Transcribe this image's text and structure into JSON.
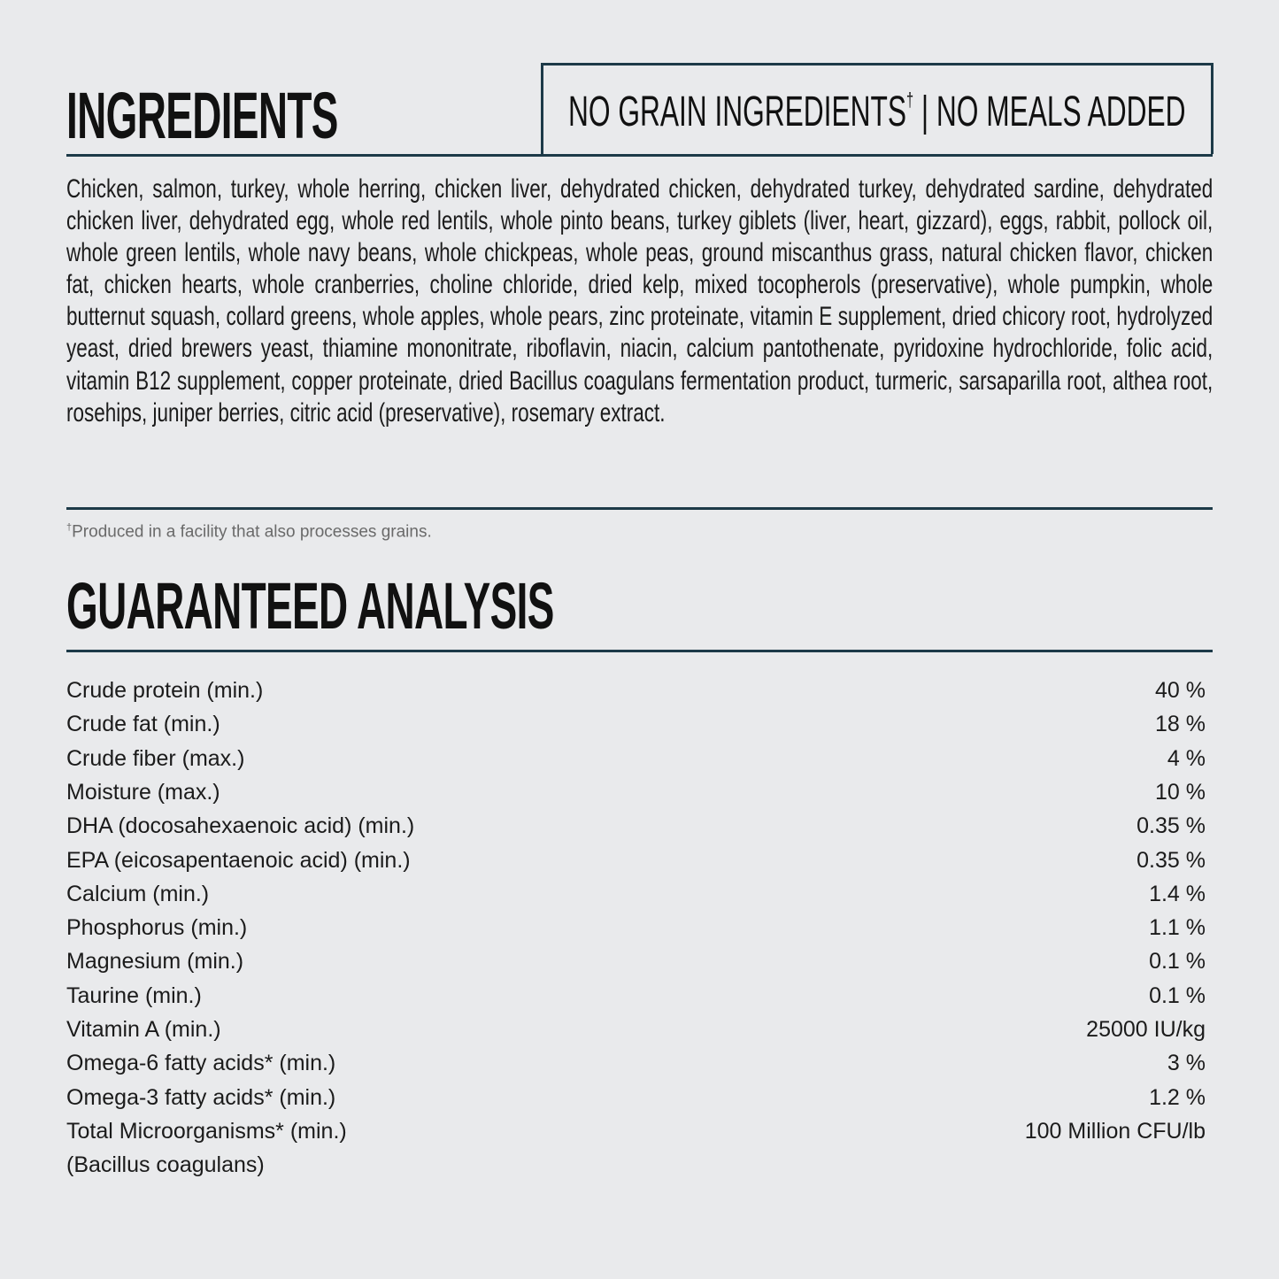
{
  "ingredients": {
    "title": "INGREDIENTS",
    "badge": {
      "before": "NO GRAIN INGREDIENTS",
      "mark": "†",
      "after": "| NO MEALS ADDED"
    },
    "text": "Chicken, salmon, turkey, whole herring, chicken liver, dehydrated chicken, dehydrated turkey, dehydrated sardine, dehydrated chicken liver, dehydrated egg, whole red lentils, whole pinto beans, turkey giblets (liver, heart, gizzard), eggs, rabbit, pollock oil, whole green lentils, whole navy beans, whole chickpeas, whole peas, ground miscanthus grass, natural chicken flavor, chicken fat, chicken hearts, whole cranberries, choline chloride, dried kelp, mixed tocopherols (preservative), whole pumpkin, whole butternut squash, collard greens, whole apples, whole pears, zinc proteinate, vitamin E supplement, dried chicory root, hydrolyzed yeast, dried brewers yeast, thiamine mononitrate, riboflavin, niacin, calcium pantothenate, pyridoxine hydrochloride, folic acid, vitamin B12 supplement, copper proteinate, dried Bacillus coagulans fermentation product, turmeric, sarsaparilla root, althea root, rosehips, juniper berries, citric acid (preservative), rosemary extract.",
    "footnote": {
      "mark": "†",
      "text": "Produced in a facility that also processes grains."
    }
  },
  "analysis": {
    "title": "GUARANTEED ANALYSIS",
    "rows": [
      [
        "Crude protein (min.)",
        "40 %"
      ],
      [
        "Crude fat (min.)",
        "18 %"
      ],
      [
        "Crude fiber (max.)",
        "4 %"
      ],
      [
        "Moisture (max.)",
        "10 %"
      ],
      [
        "DHA (docosahexaenoic acid) (min.)",
        "0.35 %"
      ],
      [
        "EPA (eicosapentaenoic acid) (min.)",
        "0.35 %"
      ],
      [
        "Calcium (min.)",
        "1.4 %"
      ],
      [
        "Phosphorus (min.)",
        "1.1 %"
      ],
      [
        "Magnesium (min.)",
        "0.1 %"
      ],
      [
        "Taurine (min.)",
        "0.1 %"
      ],
      [
        "Vitamin A (min.)",
        "25000 IU/kg"
      ],
      [
        "Omega-6 fatty acids* (min.)",
        "3 %"
      ],
      [
        "Omega-3 fatty acids* (min.)",
        "1.2 %"
      ],
      [
        "Total Microorganisms* (min.)",
        "100 Million CFU/lb"
      ]
    ],
    "note": "(Bacillus coagulans)"
  }
}
